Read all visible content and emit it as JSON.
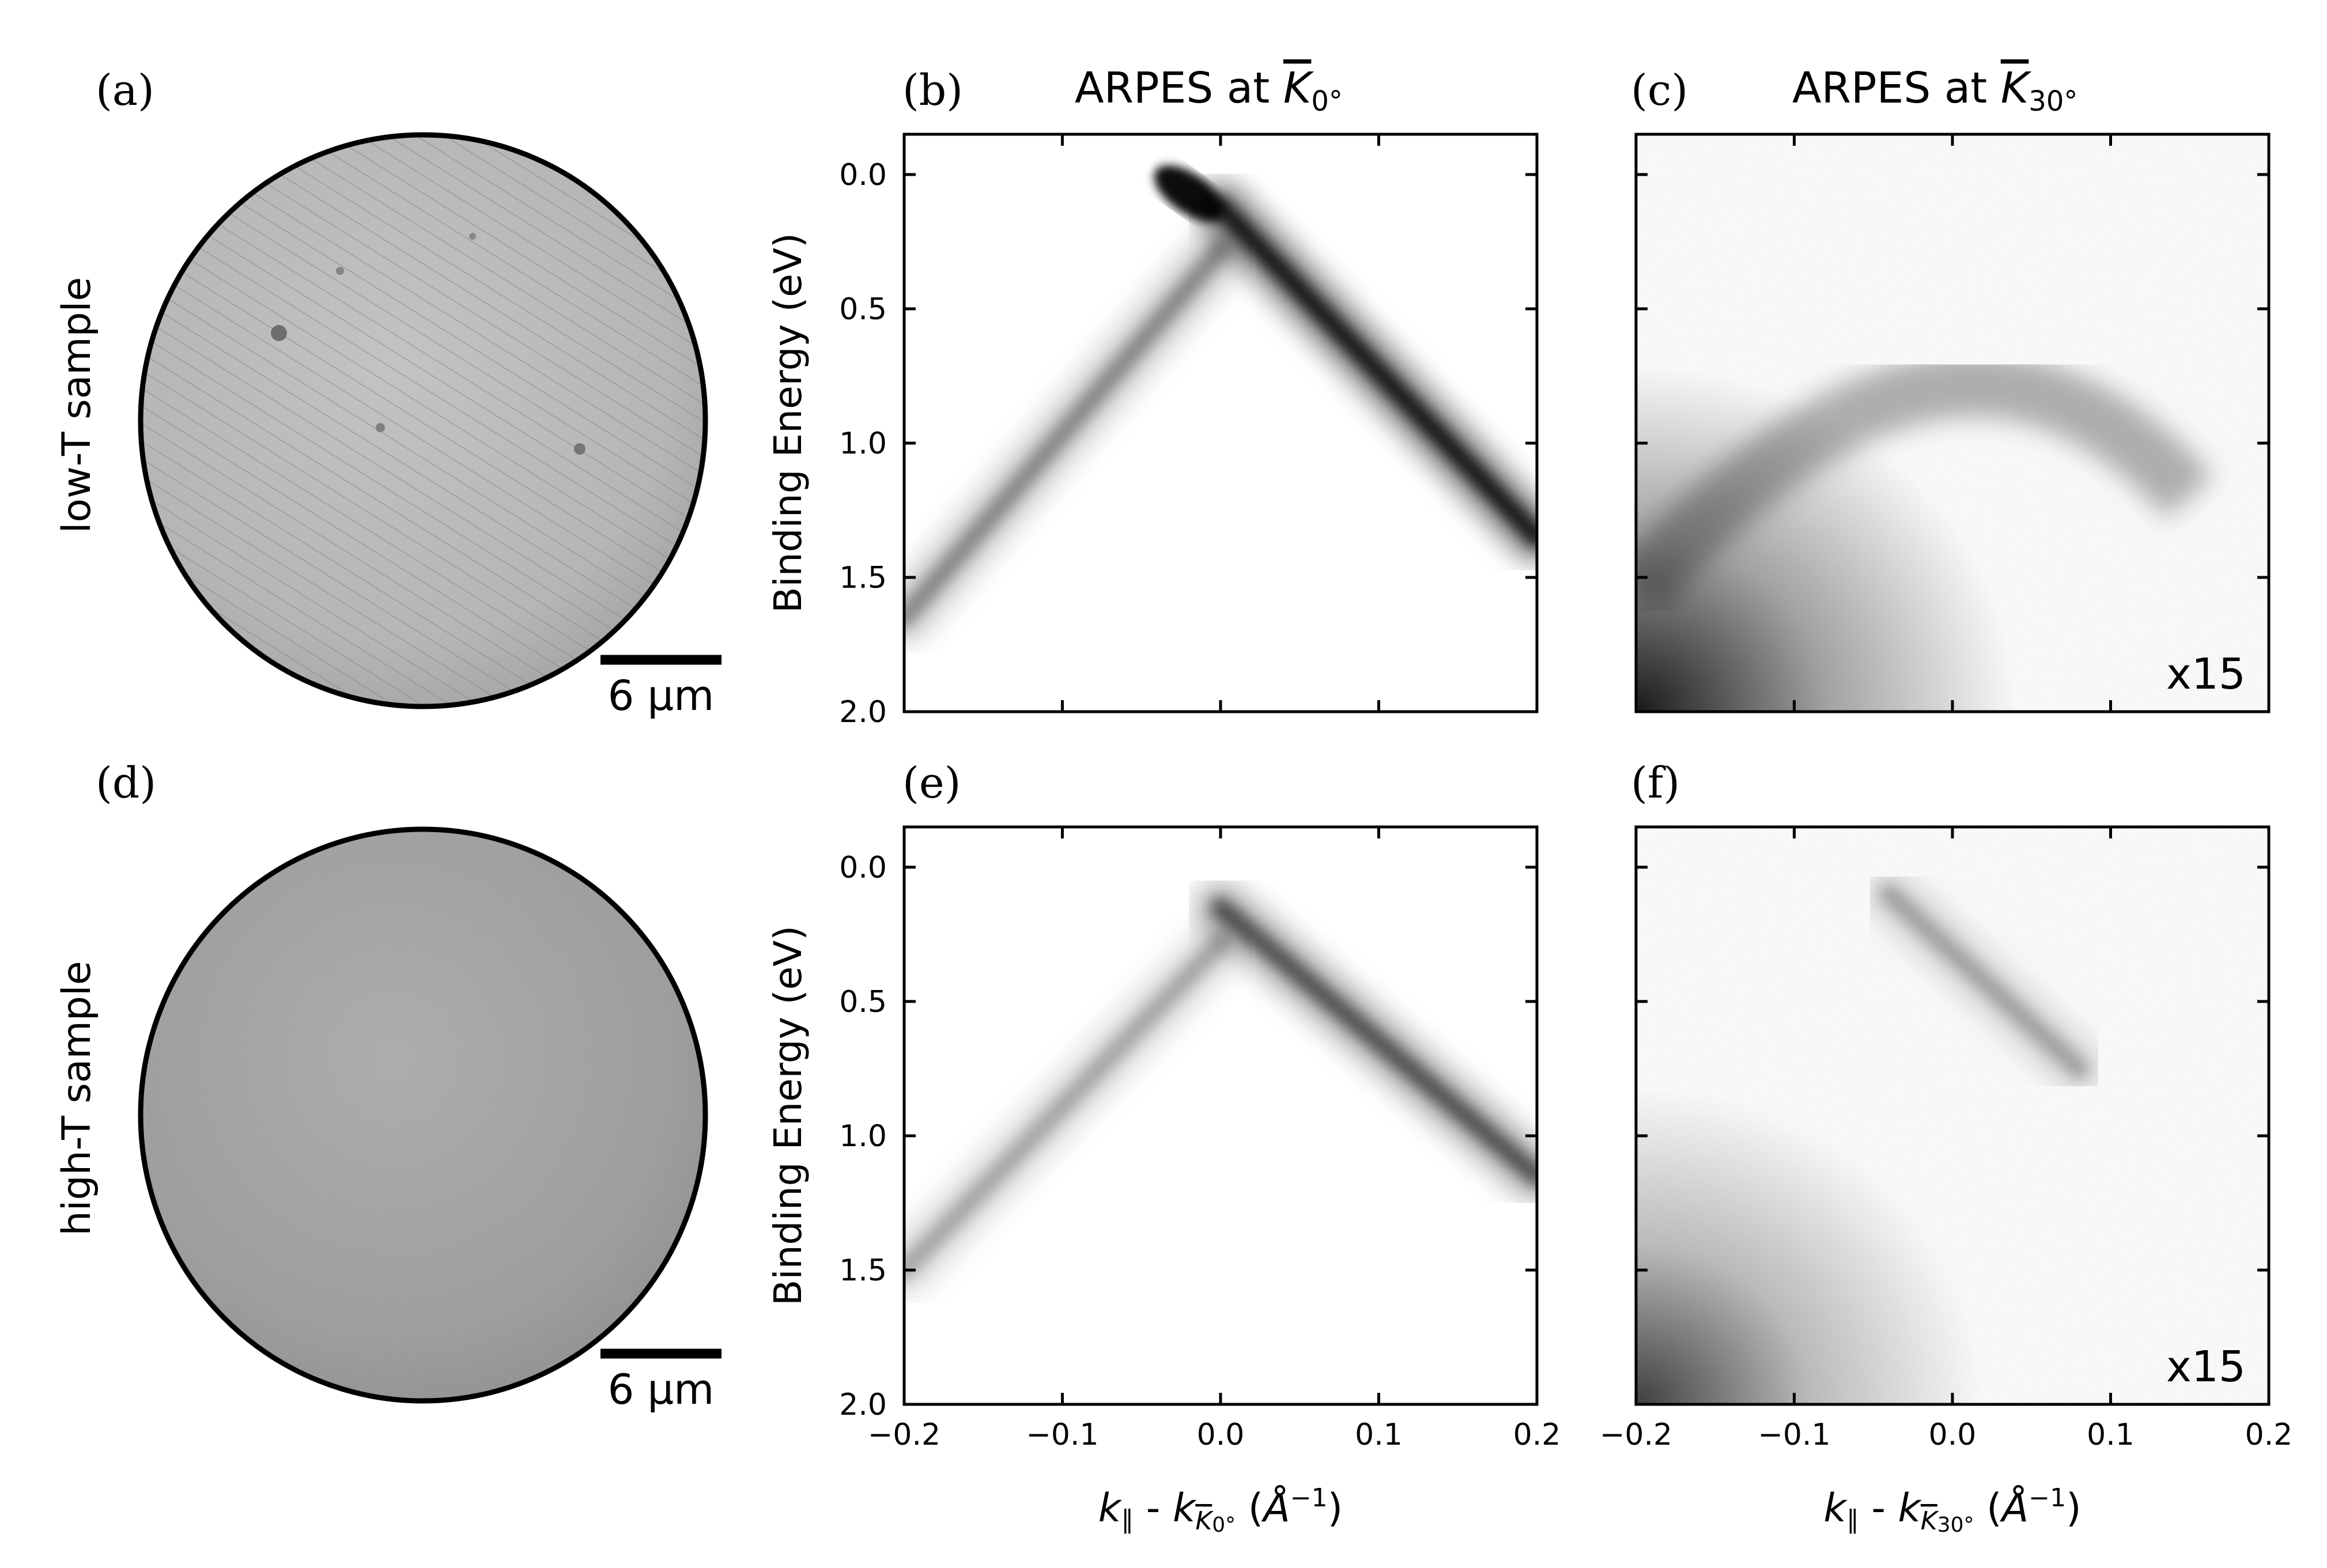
{
  "figure": {
    "panel_labels": [
      "(a)",
      "(b)",
      "(c)",
      "(d)",
      "(e)",
      "(f)"
    ],
    "row_labels": [
      "low-T sample",
      "high-T sample"
    ],
    "col_titles": [
      "ARPES at K0°",
      "ARPES at K30°"
    ],
    "scale_bar": "6 µm",
    "multiplier": "x15",
    "ylabel": "Binding Energy (eV)",
    "xlabels": [
      "k∥ - kK0° (Å−1)",
      "k∥ - kK30° (Å−1)"
    ]
  },
  "chart_data": [
    {
      "panel": "(b)",
      "type": "heatmap",
      "title": "ARPES at K0°",
      "xlabel": "",
      "ylabel": "Binding Energy (eV)",
      "xlim": [
        -0.2,
        0.2
      ],
      "ylim": [
        2.0,
        -0.15
      ],
      "xticks": [
        -0.2,
        -0.1,
        0.0,
        0.1,
        0.2
      ],
      "xtick_labels": [
        "",
        "",
        "",
        "",
        ""
      ],
      "yticks": [
        0.0,
        0.5,
        1.0,
        1.5,
        2.0
      ],
      "ytick_labels": [
        "0.0",
        "0.5",
        "1.0",
        "1.5",
        "2.0"
      ],
      "bands": [
        {
          "from": [
            0.0,
            0.12
          ],
          "to": [
            0.2,
            1.35
          ],
          "intensity": 0.85
        },
        {
          "from": [
            0.0,
            0.28
          ],
          "to": [
            -0.2,
            1.65
          ],
          "intensity": 0.35
        }
      ],
      "hotspot": [
        -0.02,
        0.07,
        0.95
      ]
    },
    {
      "panel": "(c)",
      "type": "heatmap",
      "title": "ARPES at K30°",
      "xlabel": "",
      "ylabel": "",
      "xlim": [
        -0.2,
        0.2
      ],
      "ylim": [
        2.0,
        -0.15
      ],
      "xticks": [
        -0.2,
        -0.1,
        0.0,
        0.1,
        0.2
      ],
      "xtick_labels": [
        "",
        "",
        "",
        "",
        ""
      ],
      "yticks": [
        0.0,
        0.5,
        1.0,
        1.5,
        2.0
      ],
      "ytick_labels": [
        "",
        "",
        "",
        "",
        ""
      ],
      "annotation": "x15",
      "arc": {
        "apex": [
          0.0,
          0.85
        ],
        "left_end": [
          -0.2,
          1.55
        ],
        "right_end": [
          0.15,
          1.2
        ],
        "intensity": 0.3
      }
    },
    {
      "panel": "(e)",
      "type": "heatmap",
      "title": "",
      "xlabel": "k∥ - kK0° (Å−1)",
      "ylabel": "Binding Energy (eV)",
      "xlim": [
        -0.2,
        0.2
      ],
      "ylim": [
        2.0,
        -0.15
      ],
      "xticks": [
        -0.2,
        -0.1,
        0.0,
        0.1,
        0.2
      ],
      "xtick_labels": [
        "−0.2",
        "−0.1",
        "0.0",
        "0.1",
        "0.2"
      ],
      "yticks": [
        0.0,
        0.5,
        1.0,
        1.5,
        2.0
      ],
      "ytick_labels": [
        "0.0",
        "0.5",
        "1.0",
        "1.5",
        "2.0"
      ],
      "bands": [
        {
          "from": [
            0.0,
            0.15
          ],
          "to": [
            0.2,
            1.15
          ],
          "intensity": 0.55
        },
        {
          "from": [
            0.0,
            0.28
          ],
          "to": [
            -0.2,
            1.5
          ],
          "intensity": 0.25
        }
      ]
    },
    {
      "panel": "(f)",
      "type": "heatmap",
      "title": "",
      "xlabel": "k∥ - kK30° (Å−1)",
      "ylabel": "",
      "xlim": [
        -0.2,
        0.2
      ],
      "ylim": [
        2.0,
        -0.15
      ],
      "xticks": [
        -0.2,
        -0.1,
        0.0,
        0.1,
        0.2
      ],
      "xtick_labels": [
        "−0.2",
        "−0.1",
        "0.0",
        "0.1",
        "0.2"
      ],
      "yticks": [
        0.0,
        0.5,
        1.0,
        1.5,
        2.0
      ],
      "ytick_labels": [
        "",
        "",
        "",
        "",
        ""
      ],
      "annotation": "x15",
      "bands": [
        {
          "from": [
            -0.04,
            0.1
          ],
          "to": [
            0.08,
            0.75
          ],
          "intensity": 0.25
        }
      ]
    }
  ]
}
